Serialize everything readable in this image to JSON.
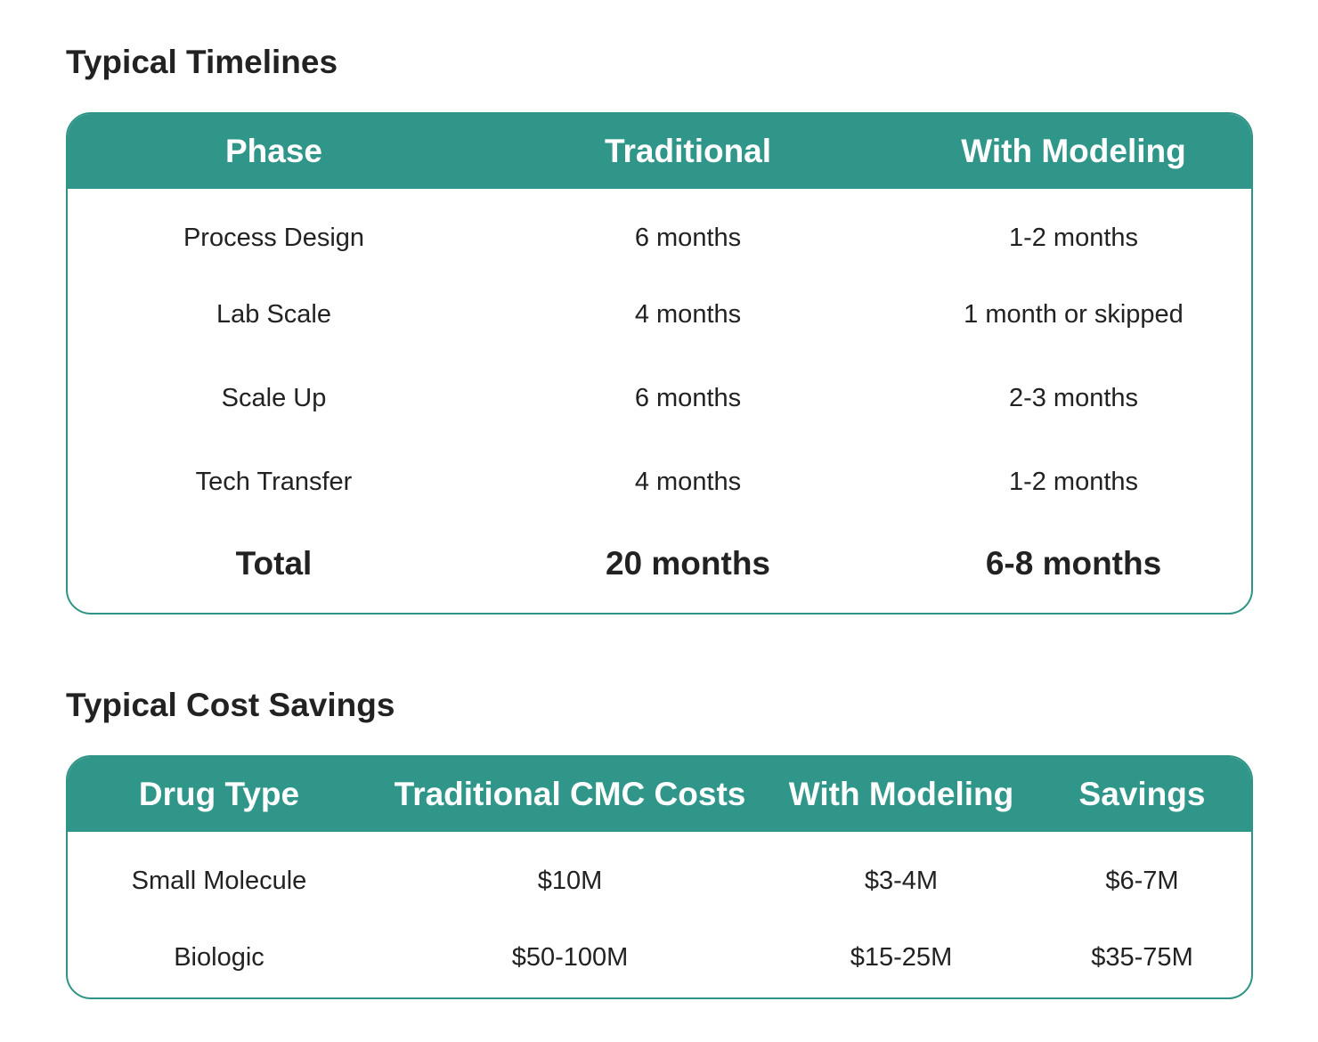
{
  "timelines": {
    "title": "Typical Timelines",
    "headers": [
      "Phase",
      "Traditional",
      "With Modeling"
    ],
    "rows": [
      [
        "Process Design",
        "6 months",
        "1-2 months"
      ],
      [
        "Lab Scale",
        "4 months",
        "1 month or skipped"
      ],
      [
        "Scale Up",
        "6 months",
        "2-3 months"
      ],
      [
        "Tech Transfer",
        "4 months",
        "1-2 months"
      ]
    ],
    "total": [
      "Total",
      "20 months",
      "6-8 months"
    ]
  },
  "savings": {
    "title": "Typical Cost Savings",
    "headers": [
      "Drug Type",
      "Traditional CMC Costs",
      "With Modeling",
      "Savings"
    ],
    "rows": [
      [
        "Small Molecule",
        "$10M",
        "$3-4M",
        "$6-7M"
      ],
      [
        "Biologic",
        "$50-100M",
        "$15-25M",
        "$35-75M"
      ]
    ]
  },
  "colors": {
    "header_bg": "#31968a",
    "border": "#2f9485",
    "header_text": "#ffffff",
    "body_text": "#222222"
  }
}
